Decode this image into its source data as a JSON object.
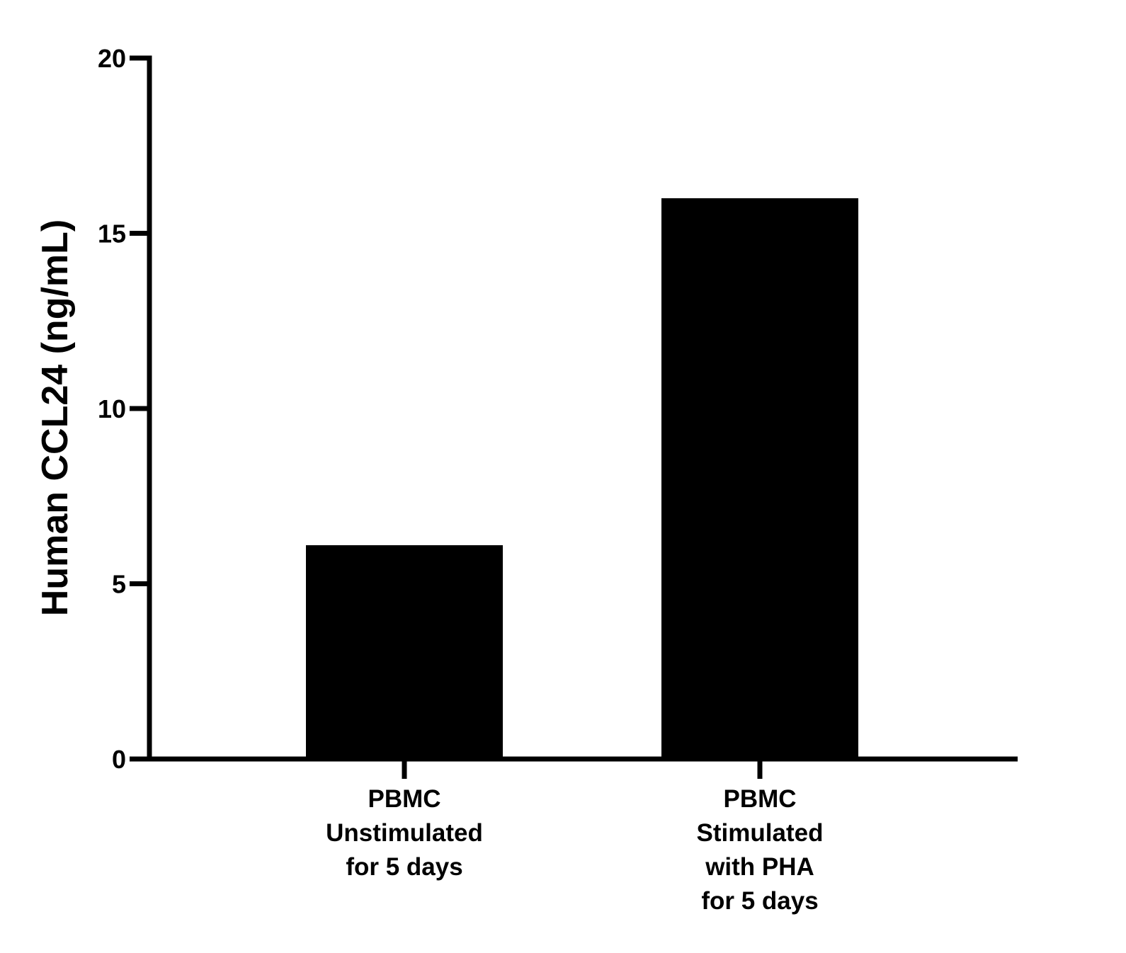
{
  "chart_data": {
    "type": "bar",
    "title": "",
    "ylabel": "Human CCL24 (ng/mL)",
    "xlabel": "",
    "ylim": [
      0,
      20
    ],
    "yticks": [
      0,
      5,
      10,
      15,
      20
    ],
    "grid": false,
    "legend": "none",
    "bar_color": "#000000",
    "categories": [
      {
        "lines": [
          "PBMC",
          "Unstimulated",
          "for 5 days"
        ],
        "value": 6.1
      },
      {
        "lines": [
          "PBMC",
          "Stimulated",
          "with PHA",
          "for 5 days"
        ],
        "value": 16.0
      }
    ]
  }
}
